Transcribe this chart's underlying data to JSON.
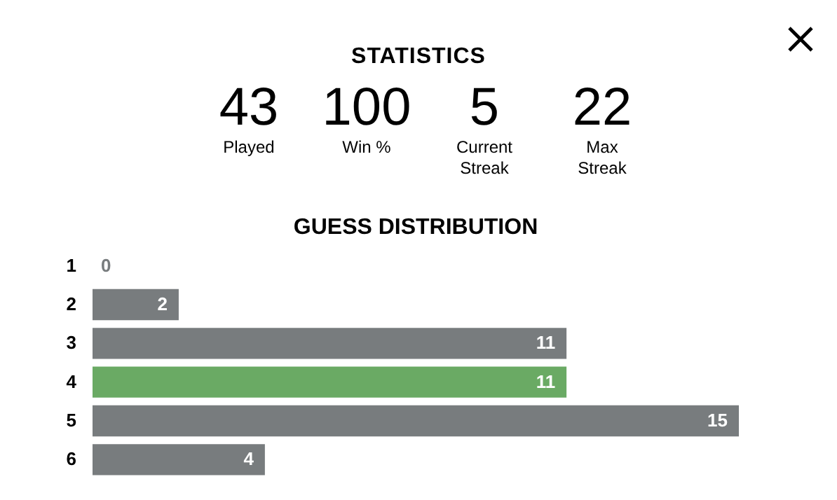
{
  "chart_data": [
    {
      "type": "other",
      "title": "STATISTICS",
      "annotations": [
        "43",
        "Played",
        "100",
        "Win %",
        "5",
        "Current Streak",
        "22",
        "Max Streak"
      ]
    },
    {
      "type": "bar",
      "title": "GUESS DISTRIBUTION",
      "orientation": "horizontal",
      "categories": [
        "1",
        "2",
        "3",
        "4",
        "5",
        "6"
      ],
      "values": [
        0,
        2,
        11,
        11,
        15,
        4
      ],
      "colors": [
        "#787c7e",
        "#787c7e",
        "#787c7e",
        "#6aaa64",
        "#787c7e",
        "#787c7e"
      ],
      "data_labels": true
    }
  ]
}
